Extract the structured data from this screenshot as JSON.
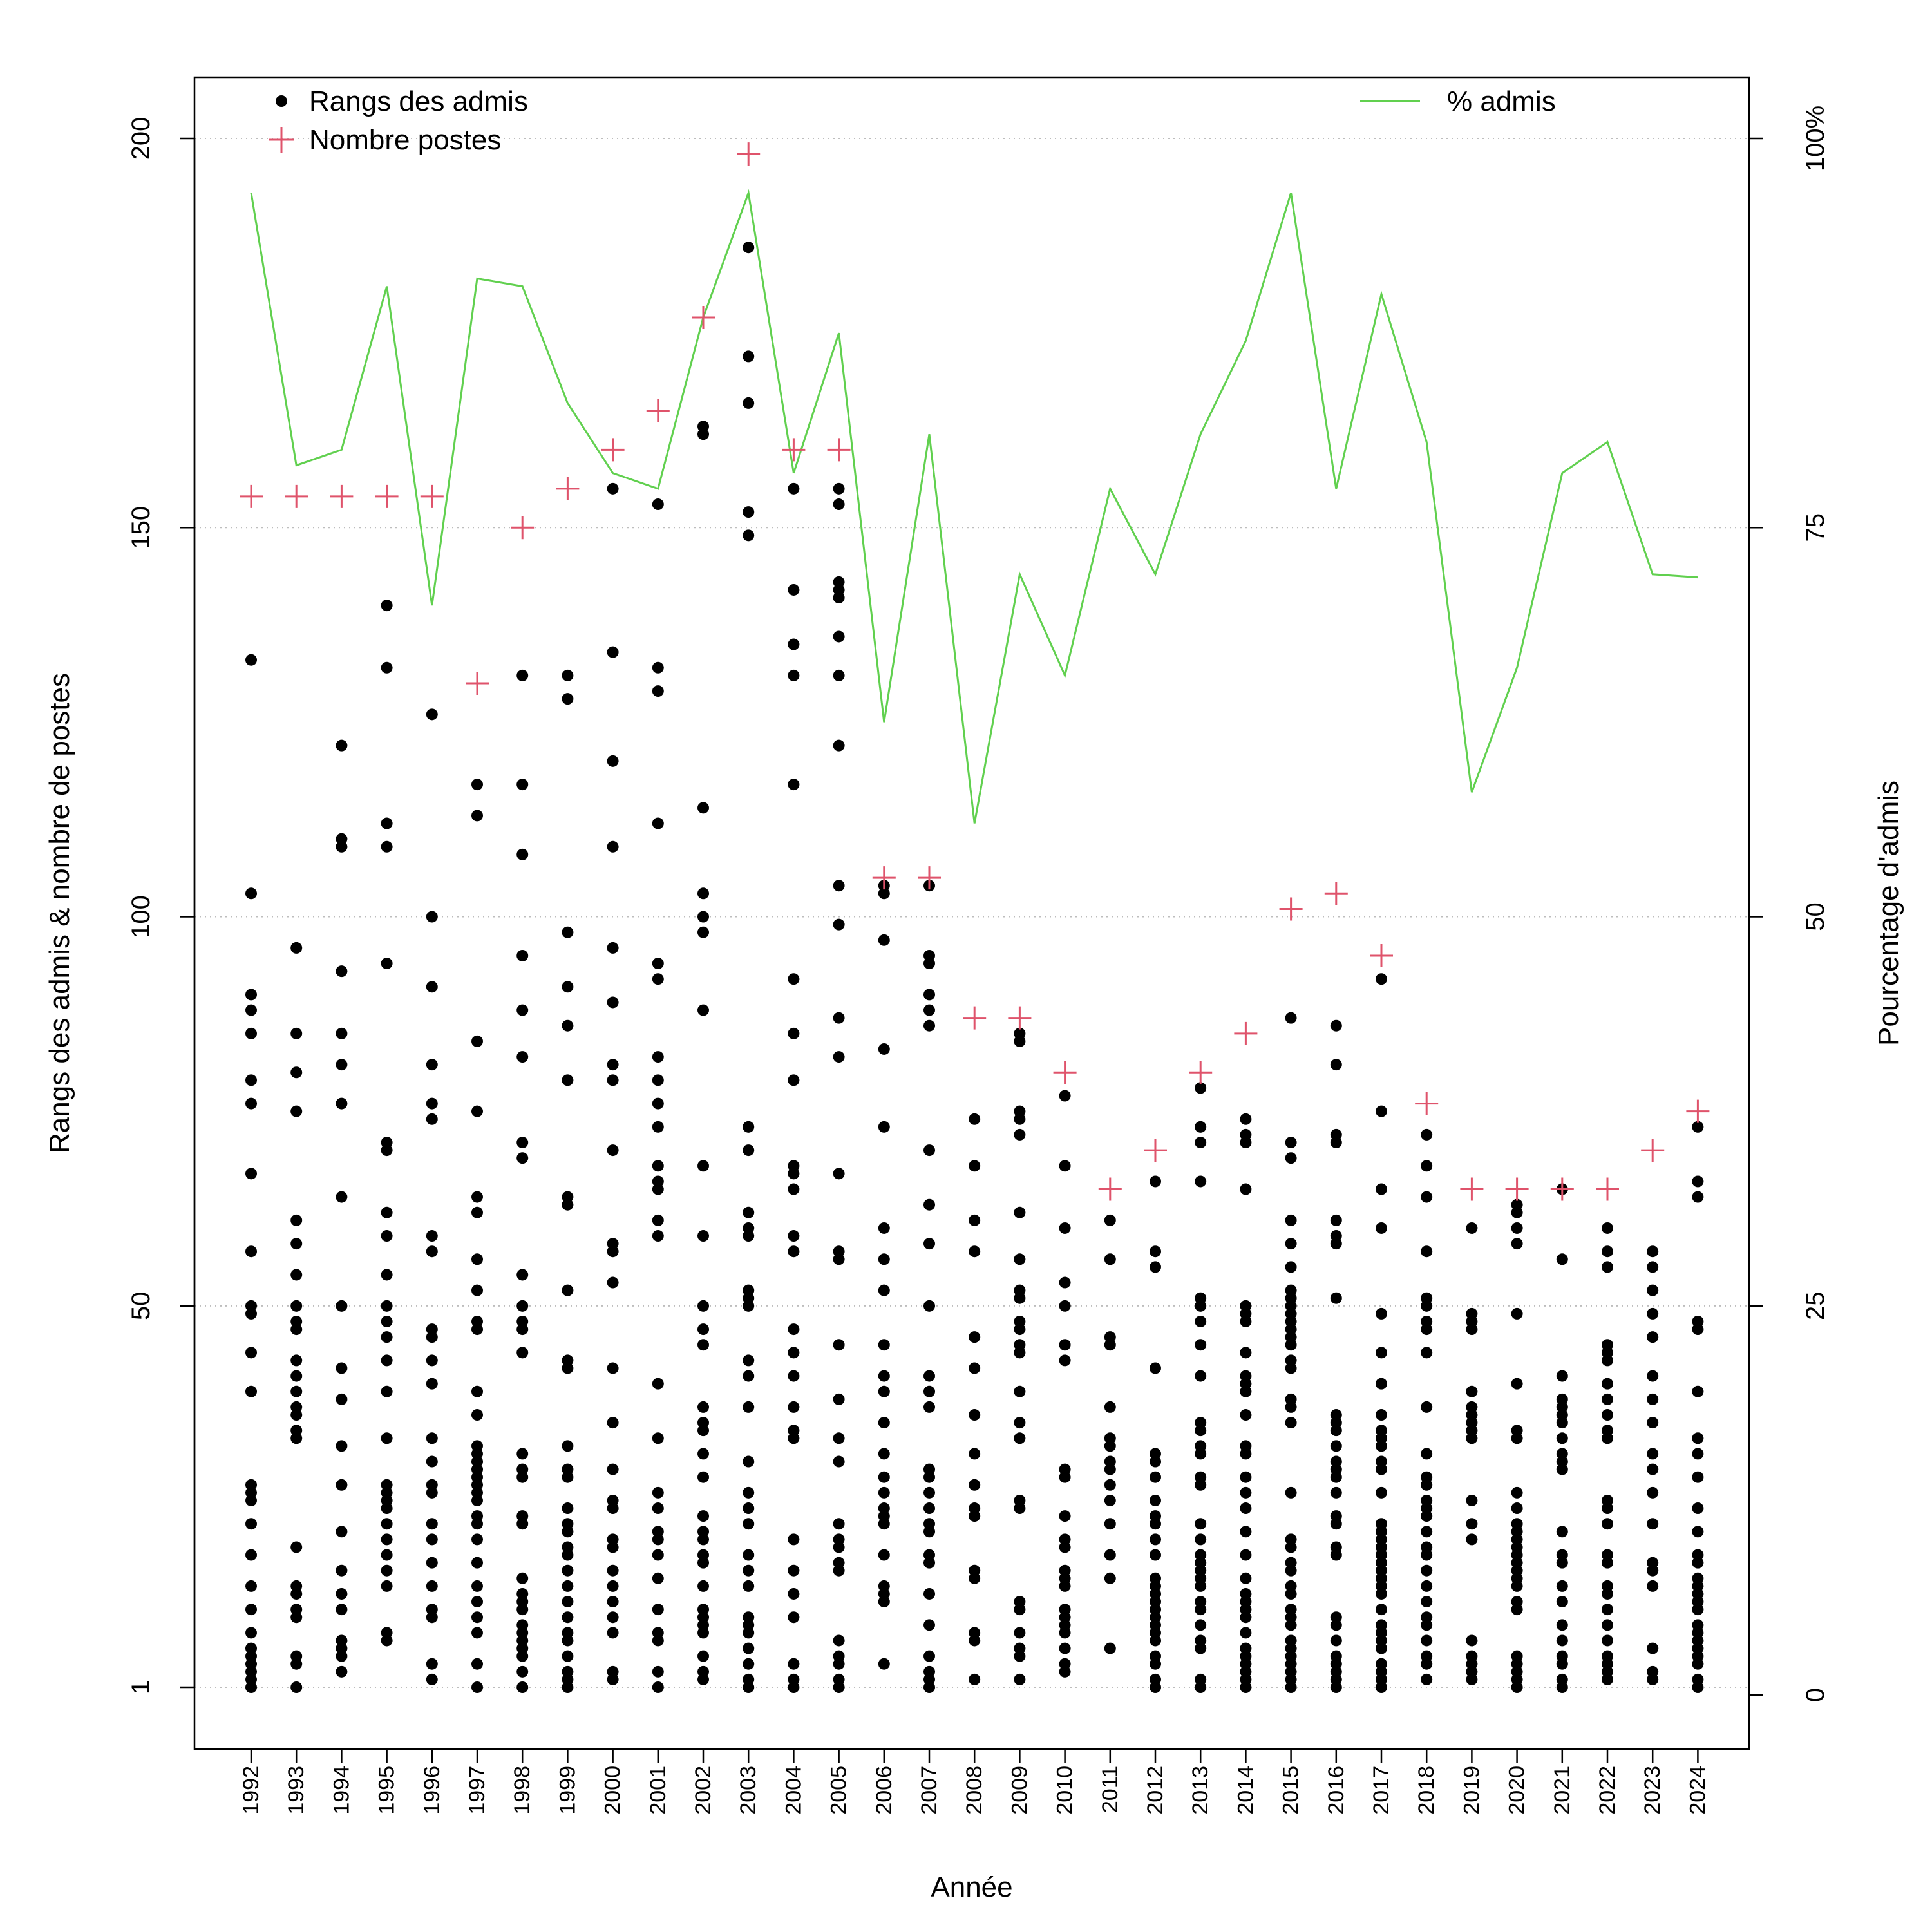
{
  "chart_data": {
    "type": "scatter",
    "xlabel": "Année",
    "ylabel_left": "Rangs des admis & nombre de postes",
    "ylabel_right": "Pourcentage d'admis",
    "years": [
      1992,
      1993,
      1994,
      1995,
      1996,
      1997,
      1998,
      1999,
      2000,
      2001,
      2002,
      2003,
      2004,
      2005,
      2006,
      2007,
      2008,
      2009,
      2010,
      2011,
      2012,
      2013,
      2014,
      2015,
      2016,
      2017,
      2018,
      2019,
      2020,
      2021,
      2022,
      2023,
      2024
    ],
    "y_left_ticks": [
      1,
      50,
      100,
      150,
      200
    ],
    "y_left_range": [
      1,
      200
    ],
    "y_right_ticks": [
      "0",
      "25",
      "50",
      "75",
      "100%"
    ],
    "y_right_range": [
      0,
      100
    ],
    "grid": "horizontal dotted",
    "legend": {
      "placement": "top",
      "rangs": "Rangs des admis",
      "postes": "Nombre postes",
      "pct": "% admis"
    },
    "colors": {
      "rangs": "#000000",
      "postes": "#DF536B",
      "pct": "#61D04F",
      "grid": "#bdbdbd"
    },
    "nombre_postes": [
      154,
      154,
      154,
      154,
      154,
      130,
      150,
      155,
      160,
      165,
      177,
      198,
      160,
      160,
      105,
      105,
      87,
      87,
      80,
      65,
      70,
      80,
      85,
      101,
      103,
      95,
      76,
      65,
      65,
      65,
      65,
      70,
      75
    ],
    "pct_admis": [
      96.5,
      79,
      80,
      90.5,
      70,
      91,
      90.5,
      83,
      78.5,
      77.5,
      88.5,
      96.5,
      78.5,
      87.5,
      62.5,
      81,
      56,
      72,
      65.5,
      77.5,
      72,
      81,
      87,
      96.5,
      77.5,
      90,
      80.5,
      58,
      66,
      78.5,
      80.5,
      72,
      71.8
    ],
    "rangs_admis": [
      [
        1,
        2,
        3,
        4,
        5,
        6,
        8,
        11,
        14,
        18,
        22,
        25,
        26,
        27,
        39,
        44,
        49,
        50,
        57,
        67,
        76,
        79,
        85,
        88,
        90,
        103,
        133
      ],
      [
        1,
        4,
        5,
        10,
        11,
        13,
        14,
        19,
        33,
        34,
        36,
        37,
        39,
        41,
        43,
        47,
        48,
        50,
        54,
        58,
        61,
        75,
        80,
        85,
        96
      ],
      [
        3,
        5,
        6,
        7,
        11,
        13,
        16,
        21,
        27,
        32,
        38,
        42,
        50,
        64,
        76,
        81,
        85,
        93,
        109,
        110,
        122
      ],
      [
        7,
        8,
        14,
        16,
        18,
        20,
        22,
        24,
        25,
        26,
        27,
        33,
        39,
        43,
        46,
        48,
        50,
        54,
        59,
        62,
        70,
        71,
        94,
        109,
        112,
        132,
        140
      ],
      [
        2,
        4,
        10,
        11,
        14,
        17,
        20,
        22,
        26,
        27,
        30,
        33,
        40,
        43,
        46,
        47,
        57,
        59,
        74,
        76,
        81,
        91,
        100,
        126
      ],
      [
        1,
        4,
        8,
        10,
        12,
        14,
        17,
        20,
        22,
        23,
        25,
        26,
        27,
        28,
        29,
        30,
        31,
        32,
        36,
        39,
        47,
        48,
        52,
        56,
        62,
        64,
        75,
        84,
        113,
        117
      ],
      [
        1,
        3,
        5,
        6,
        7,
        8,
        9,
        11,
        12,
        13,
        15,
        22,
        23,
        28,
        29,
        31,
        44,
        47,
        48,
        50,
        54,
        69,
        71,
        82,
        88,
        95,
        108,
        117,
        131
      ],
      [
        1,
        2,
        3,
        5,
        7,
        8,
        10,
        12,
        14,
        16,
        18,
        19,
        21,
        22,
        24,
        28,
        29,
        32,
        42,
        43,
        52,
        63,
        64,
        79,
        86,
        91,
        98,
        128,
        131
      ],
      [
        2,
        3,
        8,
        10,
        12,
        14,
        16,
        19,
        20,
        24,
        25,
        29,
        35,
        42,
        53,
        57,
        58,
        70,
        79,
        81,
        89,
        96,
        109,
        120,
        134,
        155
      ],
      [
        1,
        3,
        7,
        8,
        11,
        15,
        18,
        20,
        21,
        24,
        26,
        33,
        40,
        59,
        61,
        65,
        66,
        68,
        73,
        76,
        79,
        82,
        92,
        94,
        112,
        129,
        132,
        153
      ],
      [
        2,
        3,
        5,
        8,
        9,
        10,
        11,
        14,
        17,
        18,
        20,
        21,
        23,
        28,
        31,
        34,
        35,
        37,
        45,
        47,
        50,
        59,
        68,
        88,
        98,
        100,
        103,
        114,
        162,
        163
      ],
      [
        1,
        2,
        4,
        6,
        8,
        9,
        10,
        14,
        16,
        18,
        22,
        24,
        26,
        30,
        37,
        41,
        43,
        50,
        51,
        52,
        59,
        60,
        62,
        70,
        73,
        149,
        152,
        166,
        172,
        186
      ],
      [
        1,
        2,
        4,
        10,
        13,
        16,
        20,
        33,
        34,
        37,
        41,
        44,
        47,
        57,
        59,
        65,
        67,
        68,
        79,
        85,
        92,
        117,
        131,
        135,
        142,
        155
      ],
      [
        1,
        2,
        4,
        5,
        7,
        16,
        17,
        19,
        20,
        22,
        30,
        33,
        38,
        45,
        56,
        57,
        67,
        82,
        87,
        99,
        104,
        122,
        131,
        136,
        141,
        142,
        143,
        153,
        155
      ],
      [
        4,
        12,
        13,
        14,
        18,
        22,
        23,
        24,
        26,
        28,
        31,
        35,
        39,
        41,
        45,
        52,
        56,
        60,
        73,
        83,
        97,
        103,
        104
      ],
      [
        1,
        2,
        3,
        5,
        9,
        13,
        17,
        18,
        21,
        22,
        24,
        26,
        28,
        29,
        37,
        39,
        41,
        50,
        58,
        63,
        70,
        86,
        88,
        90,
        94,
        95,
        104
      ],
      [
        2,
        7,
        8,
        15,
        16,
        23,
        24,
        27,
        31,
        36,
        42,
        46,
        57,
        61,
        68,
        74
      ],
      [
        2,
        5,
        6,
        8,
        11,
        12,
        24,
        25,
        33,
        35,
        39,
        44,
        45,
        47,
        48,
        51,
        52,
        56,
        62,
        72,
        74,
        75,
        84,
        85
      ],
      [
        3,
        4,
        6,
        8,
        9,
        10,
        11,
        14,
        15,
        16,
        19,
        20,
        23,
        28,
        29,
        43,
        45,
        50,
        53,
        60,
        68,
        77
      ],
      [
        6,
        15,
        18,
        22,
        25,
        27,
        29,
        30,
        32,
        33,
        37,
        45,
        46,
        56,
        61
      ],
      [
        1,
        2,
        4,
        5,
        7,
        8,
        9,
        10,
        11,
        12,
        13,
        14,
        15,
        18,
        20,
        22,
        23,
        25,
        28,
        30,
        31,
        42,
        55,
        57,
        66
      ],
      [
        1,
        2,
        6,
        7,
        9,
        11,
        12,
        14,
        15,
        16,
        17,
        18,
        20,
        22,
        27,
        28,
        31,
        32,
        34,
        35,
        41,
        45,
        48,
        50,
        51,
        66,
        71,
        73,
        78
      ],
      [
        1,
        2,
        3,
        4,
        5,
        6,
        8,
        10,
        11,
        12,
        13,
        15,
        18,
        21,
        24,
        26,
        28,
        31,
        32,
        36,
        39,
        40,
        41,
        44,
        48,
        49,
        50,
        65,
        71,
        72,
        74
      ],
      [
        1,
        2,
        3,
        4,
        5,
        6,
        7,
        9,
        10,
        11,
        13,
        14,
        16,
        17,
        19,
        20,
        26,
        35,
        37,
        38,
        42,
        43,
        45,
        46,
        47,
        48,
        49,
        50,
        51,
        52,
        55,
        58,
        61,
        69,
        71,
        87
      ],
      [
        1,
        2,
        3,
        4,
        5,
        7,
        9,
        10,
        18,
        19,
        22,
        23,
        26,
        28,
        29,
        30,
        32,
        34,
        35,
        36,
        51,
        58,
        59,
        61,
        71,
        72,
        81,
        86
      ],
      [
        1,
        2,
        3,
        4,
        6,
        7,
        8,
        9,
        11,
        13,
        14,
        15,
        16,
        17,
        18,
        19,
        20,
        21,
        22,
        26,
        29,
        30,
        32,
        33,
        34,
        36,
        40,
        44,
        49,
        60,
        65,
        75,
        92
      ],
      [
        2,
        4,
        5,
        7,
        9,
        10,
        12,
        14,
        16,
        18,
        19,
        21,
        23,
        24,
        25,
        27,
        28,
        31,
        37,
        44,
        47,
        48,
        50,
        51,
        57,
        64,
        68,
        72
      ],
      [
        2,
        3,
        4,
        5,
        7,
        20,
        22,
        25,
        33,
        34,
        35,
        36,
        37,
        39,
        47,
        48,
        49,
        60
      ],
      [
        1,
        2,
        3,
        4,
        5,
        11,
        12,
        14,
        15,
        16,
        17,
        18,
        19,
        20,
        21,
        22,
        24,
        26,
        33,
        34,
        40,
        49,
        58,
        60,
        62,
        63
      ],
      [
        1,
        2,
        4,
        5,
        7,
        9,
        12,
        14,
        17,
        18,
        21,
        29,
        30,
        31,
        33,
        35,
        36,
        37,
        38,
        41,
        56,
        65
      ],
      [
        2,
        3,
        4,
        5,
        7,
        9,
        11,
        13,
        14,
        17,
        18,
        22,
        24,
        25,
        33,
        34,
        36,
        38,
        40,
        43,
        44,
        45,
        55,
        57,
        60
      ],
      [
        2,
        3,
        6,
        14,
        16,
        17,
        22,
        26,
        29,
        31,
        35,
        38,
        41,
        46,
        49,
        52,
        55,
        57
      ],
      [
        1,
        2,
        4,
        5,
        6,
        7,
        8,
        9,
        11,
        12,
        13,
        14,
        15,
        17,
        18,
        21,
        24,
        28,
        31,
        33,
        39,
        47,
        48,
        64,
        66,
        73
      ]
    ]
  }
}
